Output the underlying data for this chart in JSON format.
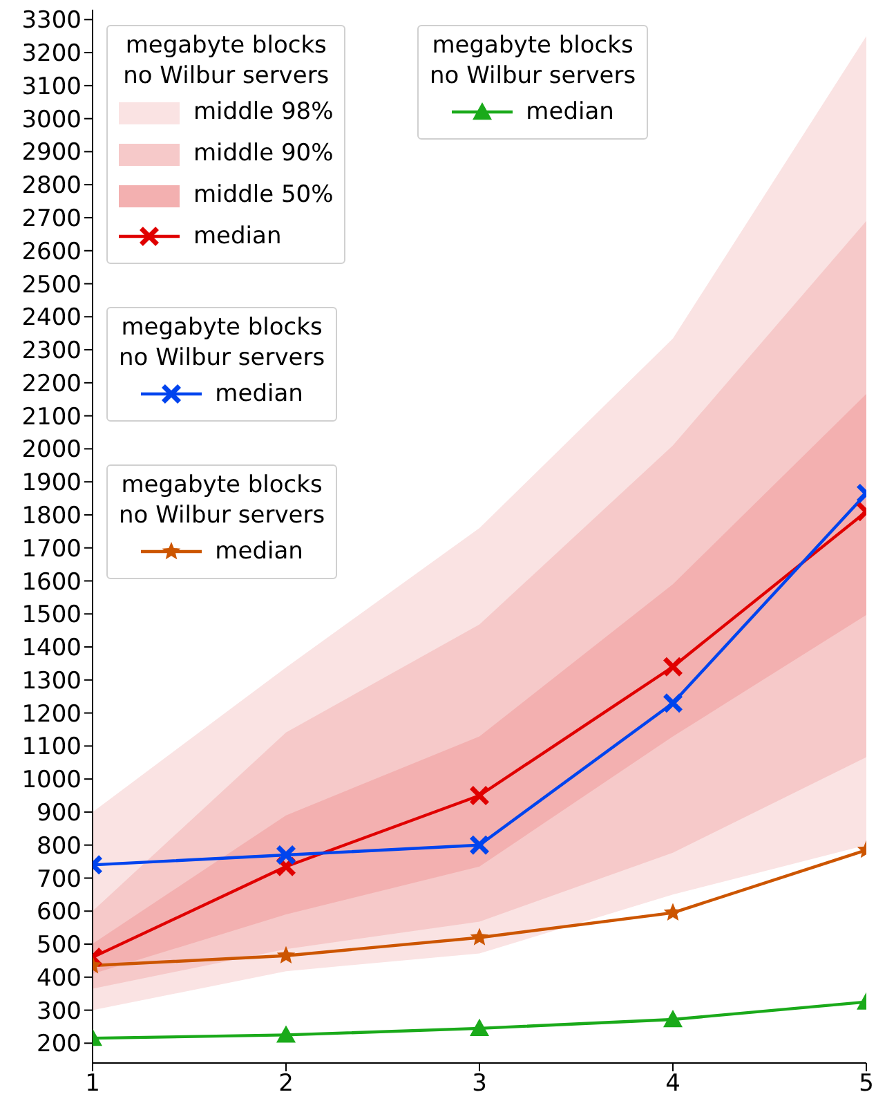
{
  "chart_data": {
    "type": "line",
    "x": [
      1,
      2,
      3,
      4,
      5
    ],
    "xlim": [
      1,
      5
    ],
    "xticks": [
      1,
      2,
      3,
      4,
      5
    ],
    "ylim": [
      140,
      3330
    ],
    "yticks": [
      200,
      300,
      400,
      500,
      600,
      700,
      800,
      900,
      1000,
      1100,
      1200,
      1300,
      1400,
      1500,
      1600,
      1700,
      1800,
      1900,
      2000,
      2100,
      2200,
      2300,
      2400,
      2500,
      2600,
      2700,
      2800,
      2900,
      3000,
      3100,
      3200,
      3300
    ],
    "legend_title": "megabyte blocks\nno Wilbur servers",
    "legend": "top left",
    "grid": false,
    "series": [
      {
        "name": "middle 98%",
        "type": "area",
        "color": "#fae3e3",
        "values": [
          null,
          null,
          null,
          null,
          null
        ],
        "lower": [
          300,
          418,
          472,
          650,
          800
        ],
        "upper": [
          900,
          1338,
          1760,
          2334,
          3250
        ]
      },
      {
        "name": "middle 90%",
        "type": "area",
        "color": "#f6c9c9",
        "values": [
          null,
          null,
          null,
          null,
          null
        ],
        "lower": [
          365,
          485,
          568,
          777,
          1066
        ],
        "upper": [
          600,
          1141,
          1468,
          2010,
          2690
        ]
      },
      {
        "name": "middle 50%",
        "type": "area",
        "color": "#f3b0b0",
        "values": [
          null,
          null,
          null,
          null,
          null
        ],
        "lower": [
          410,
          590,
          735,
          1129,
          1497
        ],
        "upper": [
          501,
          890,
          1129,
          1590,
          2166
        ]
      },
      {
        "name": "median",
        "type": "line",
        "color": "#e00000",
        "marker": "cross",
        "values": [
          460,
          735,
          950,
          1340,
          1810
        ]
      },
      {
        "name": "median",
        "type": "line",
        "color": "#0044ee",
        "marker": "cross",
        "values": [
          740,
          770,
          800,
          1230,
          1865
        ]
      },
      {
        "name": "median",
        "type": "line",
        "color": "#cc5500",
        "marker": "star",
        "values": [
          435,
          465,
          520,
          595,
          785
        ]
      },
      {
        "name": "median",
        "type": "line",
        "color": "#1aaa1a",
        "marker": "triangle",
        "values": [
          215,
          225,
          245,
          272,
          325
        ]
      }
    ]
  }
}
